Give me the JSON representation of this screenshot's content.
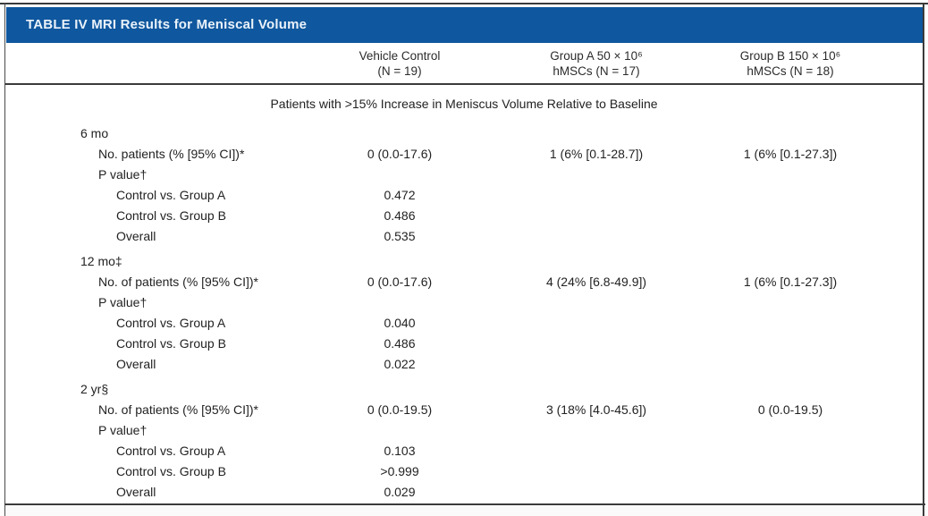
{
  "table": {
    "title": "TABLE IV MRI Results for Meniscal Volume",
    "title_bar_color": "#0f579e",
    "title_text_color": "#eaf2fa",
    "rule_color": "#3b3b3b",
    "columns": [
      {
        "line1": "Vehicle Control",
        "line2": "(N = 19)"
      },
      {
        "line1": "Group A 50 × 10⁶",
        "line2": "hMSCs (N = 17)"
      },
      {
        "line1": "Group B 150 × 10⁶",
        "line2": "hMSCs (N = 18)"
      }
    ],
    "section_heading": "Patients with >15% Increase in Meniscus Volume Relative to Baseline",
    "rows": [
      {
        "indent": 0,
        "section_gap": false,
        "label": "6 mo",
        "values": [
          "",
          "",
          ""
        ]
      },
      {
        "indent": 1,
        "section_gap": false,
        "label": "No. patients (% [95% CI])*",
        "values": [
          "0 (0.0-17.6)",
          "1 (6% [0.1-28.7])",
          "1 (6% [0.1-27.3])"
        ]
      },
      {
        "indent": 1,
        "section_gap": false,
        "label": "P value†",
        "values": [
          "",
          "",
          ""
        ]
      },
      {
        "indent": 2,
        "section_gap": false,
        "label": "Control vs. Group A",
        "values": [
          "0.472",
          "",
          ""
        ]
      },
      {
        "indent": 2,
        "section_gap": false,
        "label": "Control vs. Group B",
        "values": [
          "0.486",
          "",
          ""
        ]
      },
      {
        "indent": 2,
        "section_gap": false,
        "label": "Overall",
        "values": [
          "0.535",
          "",
          ""
        ]
      },
      {
        "indent": 0,
        "section_gap": true,
        "label": "12 mo‡",
        "values": [
          "",
          "",
          ""
        ]
      },
      {
        "indent": 1,
        "section_gap": false,
        "label": "No. of patients (% [95% CI])*",
        "values": [
          "0 (0.0-17.6)",
          "4 (24% [6.8-49.9])",
          "1 (6% [0.1-27.3])"
        ]
      },
      {
        "indent": 1,
        "section_gap": false,
        "label": "P value†",
        "values": [
          "",
          "",
          ""
        ]
      },
      {
        "indent": 2,
        "section_gap": false,
        "label": "Control vs. Group A",
        "values": [
          "0.040",
          "",
          ""
        ]
      },
      {
        "indent": 2,
        "section_gap": false,
        "label": "Control vs. Group B",
        "values": [
          "0.486",
          "",
          ""
        ]
      },
      {
        "indent": 2,
        "section_gap": false,
        "label": "Overall",
        "values": [
          "0.022",
          "",
          ""
        ]
      },
      {
        "indent": 0,
        "section_gap": true,
        "label": "2 yr§",
        "values": [
          "",
          "",
          ""
        ]
      },
      {
        "indent": 1,
        "section_gap": false,
        "label": "No. of patients (% [95% CI])*",
        "values": [
          "0 (0.0-19.5)",
          "3 (18% [4.0-45.6])",
          "0 (0.0-19.5)"
        ]
      },
      {
        "indent": 1,
        "section_gap": false,
        "label": "P value†",
        "values": [
          "",
          "",
          ""
        ]
      },
      {
        "indent": 2,
        "section_gap": false,
        "label": "Control vs. Group A",
        "values": [
          "0.103",
          "",
          ""
        ]
      },
      {
        "indent": 2,
        "section_gap": false,
        "label": "Control vs. Group B",
        "values": [
          ">0.999",
          "",
          ""
        ]
      },
      {
        "indent": 2,
        "section_gap": false,
        "label": "Overall",
        "values": [
          "0.029",
          "",
          ""
        ]
      }
    ]
  }
}
